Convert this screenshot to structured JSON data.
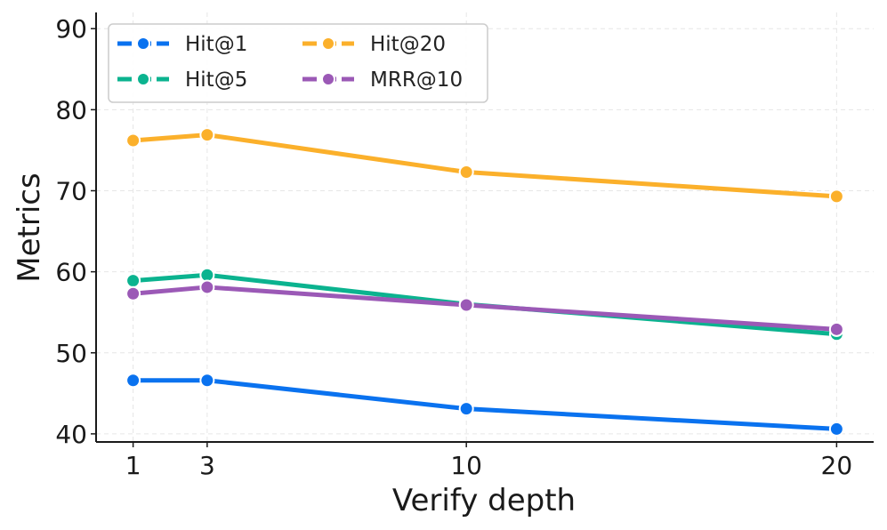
{
  "chart_data": {
    "type": "line",
    "title": "",
    "xlabel": "Verify depth",
    "ylabel": "Metrics",
    "x": [
      1,
      3,
      10,
      20
    ],
    "x_ticks": [
      1,
      3,
      10,
      20
    ],
    "x_tick_labels": [
      "1",
      "3",
      "10",
      "20"
    ],
    "xlim": [
      0,
      21
    ],
    "ylim": [
      39,
      92
    ],
    "y_ticks": [
      40,
      50,
      60,
      70,
      80,
      90
    ],
    "y_tick_labels": [
      "40",
      "50",
      "60",
      "70",
      "80",
      "90"
    ],
    "grid": true,
    "legend_position": "top-left",
    "legend_columns": 2,
    "series": [
      {
        "name": "Hit@1",
        "color": "#0a72ef",
        "values": [
          46.6,
          46.6,
          43.1,
          40.6
        ]
      },
      {
        "name": "Hit@5",
        "color": "#0bb38f",
        "values": [
          58.9,
          59.6,
          56.0,
          52.3
        ]
      },
      {
        "name": "Hit@20",
        "color": "#fbb02b",
        "values": [
          76.2,
          76.9,
          72.3,
          69.3
        ]
      },
      {
        "name": "MRR@10",
        "color": "#9b59b6",
        "values": [
          57.3,
          58.1,
          55.9,
          52.9
        ]
      }
    ]
  }
}
